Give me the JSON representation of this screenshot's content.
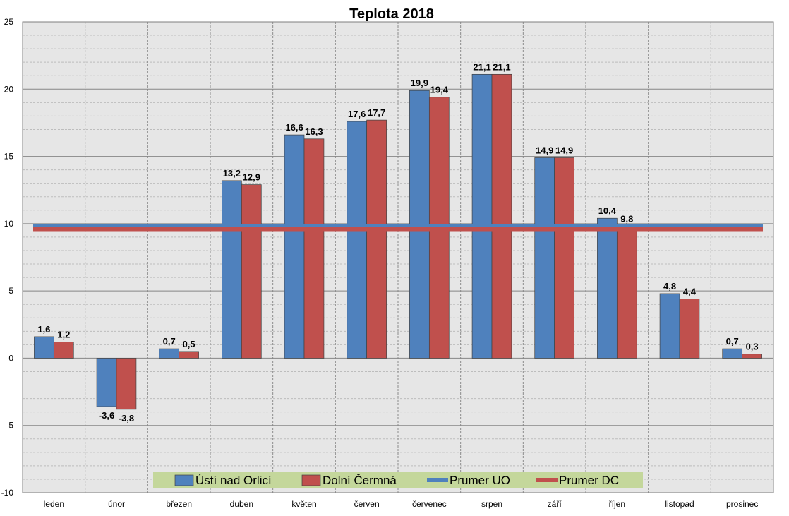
{
  "chart_data": {
    "type": "bar",
    "title": "Teplota 2018",
    "categories": [
      "leden",
      "únor",
      "březen",
      "duben",
      "květen",
      "červen",
      "červenec",
      "srpen",
      "září",
      "říjen",
      "listopad",
      "prosinec"
    ],
    "series": [
      {
        "name": "Ústí nad Orlicí",
        "values": [
          1.6,
          -3.6,
          0.7,
          13.2,
          16.6,
          17.6,
          19.9,
          21.1,
          14.9,
          10.4,
          4.8,
          0.7
        ],
        "labels": [
          "1,6",
          "-3,6",
          "0,7",
          "13,2",
          "16,6",
          "17,6",
          "19,9",
          "21,1",
          "14,9",
          "10,4",
          "4,8",
          "0,7"
        ],
        "color": "#4f81bd"
      },
      {
        "name": "Dolní Čermná",
        "values": [
          1.2,
          -3.8,
          0.5,
          12.9,
          16.3,
          17.7,
          19.4,
          21.1,
          14.9,
          9.8,
          4.4,
          0.3
        ],
        "labels": [
          "1,2",
          "-3,8",
          "0,5",
          "12,9",
          "16,3",
          "17,7",
          "19,4",
          "21,1",
          "14,9",
          "9,8",
          "4,4",
          "0,3"
        ],
        "color": "#c0504d"
      }
    ],
    "lines": [
      {
        "name": "Prumer UO",
        "value": 9.8,
        "color": "#4f81bd"
      },
      {
        "name": "Prumer DC",
        "value": 9.6,
        "color": "#c0504d"
      }
    ],
    "ylim": [
      -10,
      25
    ],
    "yticks": [
      25,
      20,
      15,
      10,
      5,
      0,
      -5,
      -10
    ],
    "ytick_labels": [
      "25",
      "20",
      "15",
      "10",
      "5",
      "0",
      "-5",
      "-10"
    ],
    "xlabel": "",
    "ylabel": "",
    "grid": true,
    "legend": "bottom-center",
    "colors": {
      "plot_background": "#e6e6e6",
      "legend_background": "#c4d79b",
      "major_grid": "#868686",
      "minor_grid": "#bdbdbd"
    }
  }
}
